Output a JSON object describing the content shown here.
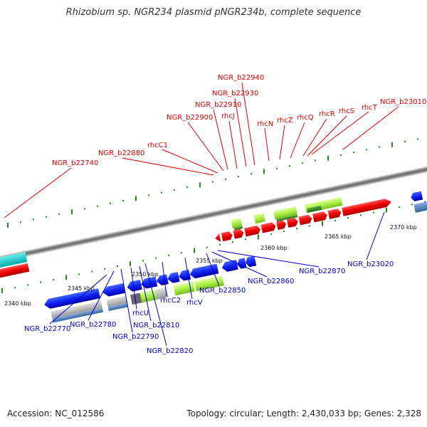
{
  "header": {
    "title": "Rhizobium sp. NGR234 plasmid pNGR234b, complete sequence"
  },
  "footer": {
    "accession": "Accession: NC_012586",
    "summary": "Topology: circular; Length: 2,430,033 bp; Genes: 2,328"
  },
  "colors": {
    "top_labels": "#dd0000",
    "bottom_labels": "#0000cc",
    "backbone": "#808080"
  },
  "top_labels": [
    {
      "id": "rhcT",
      "text": "rhcT"
    },
    {
      "id": "rhcS",
      "text": "rhcS"
    },
    {
      "id": "rhcR",
      "text": "rhcR"
    },
    {
      "id": "rhcQ",
      "text": "rhcQ"
    },
    {
      "id": "rhcZ",
      "text": "rhcZ"
    },
    {
      "id": "rhcN",
      "text": "rhcN"
    },
    {
      "id": "rhcJ",
      "text": "rhcJ"
    },
    {
      "id": "rhcC1",
      "text": "rhcC1"
    },
    {
      "id": "ngr-b22740",
      "text": "NGR_b22740"
    },
    {
      "id": "ngr-b22880",
      "text": "NGR_b22880"
    },
    {
      "id": "ngr-b22900",
      "text": "NGR_b22900"
    },
    {
      "id": "ngr-b22910",
      "text": "NGR_b22910"
    },
    {
      "id": "ngr-b22930",
      "text": "NGR_b22930"
    },
    {
      "id": "ngr-b22940",
      "text": "NGR_b22940"
    },
    {
      "id": "ngr-b23010",
      "text": "NGR_b23010"
    }
  ],
  "bottom_labels": [
    {
      "id": "ngr-b22770",
      "text": "NGR_b22770"
    },
    {
      "id": "ngr-b22780",
      "text": "NGR_b22780"
    },
    {
      "id": "ngr-b22790",
      "text": "NGR_b22790"
    },
    {
      "id": "rhcU",
      "text": "rhcU"
    },
    {
      "id": "ngr-b22810",
      "text": "NGR_b22810"
    },
    {
      "id": "ngr-b22820",
      "text": "NGR_b22820"
    },
    {
      "id": "rhcC2",
      "text": "rhcC2"
    },
    {
      "id": "rhcV",
      "text": "rhcV"
    },
    {
      "id": "ngr-b22850",
      "text": "NGR_b22850"
    },
    {
      "id": "ngr-b22860",
      "text": "NGR_b22860"
    },
    {
      "id": "ngr-b22870",
      "text": "NGR_b22870"
    },
    {
      "id": "ngr-b23020",
      "text": "NGR_b23020"
    }
  ],
  "scale_labels": [
    {
      "id": "kbp-2340",
      "text": "2340 kbp"
    },
    {
      "id": "kbp-2345",
      "text": "2345 kbp"
    },
    {
      "id": "kbp-2350",
      "text": "2350 kbp"
    },
    {
      "id": "kbp-2355",
      "text": "2355 kbp"
    },
    {
      "id": "kbp-2360",
      "text": "2360 kbp"
    },
    {
      "id": "kbp-2365",
      "text": "2365 kbp"
    },
    {
      "id": "kbp-2370",
      "text": "2370 kbp"
    }
  ]
}
